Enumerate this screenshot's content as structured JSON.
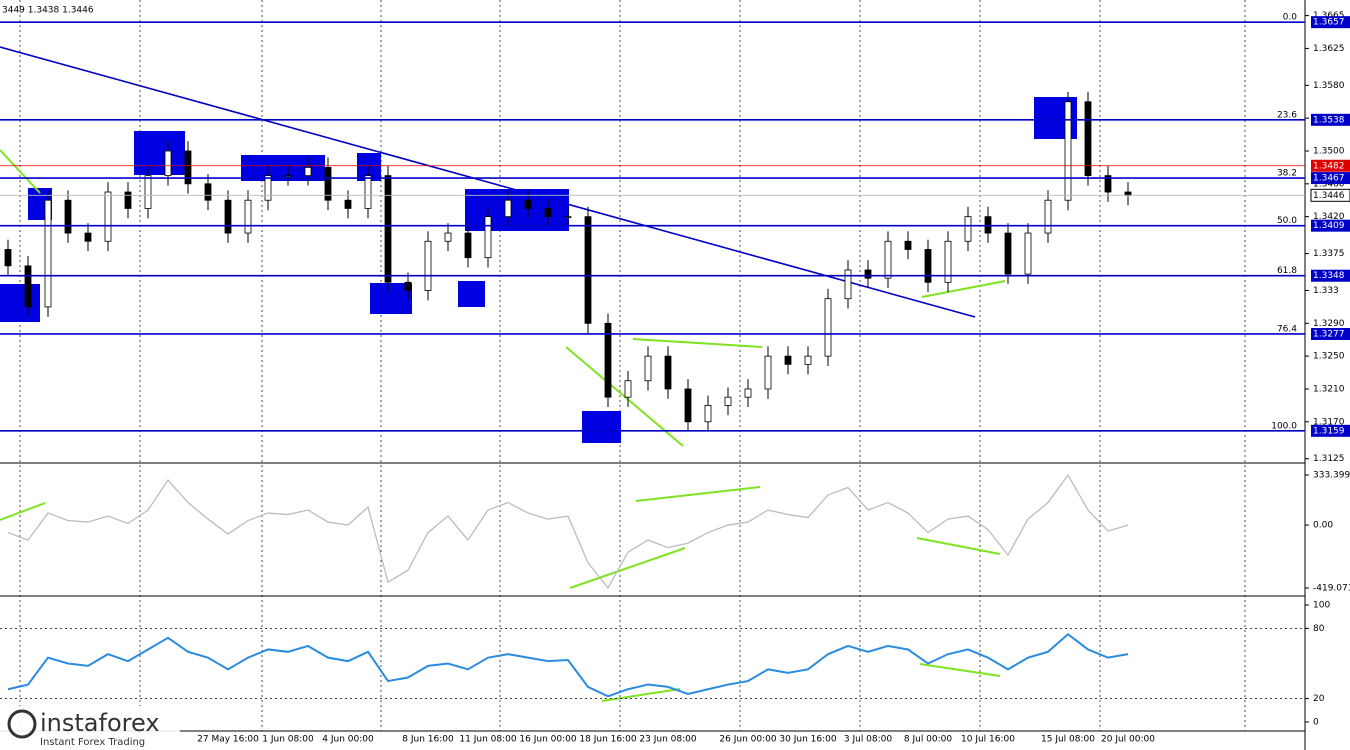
{
  "header_text": "3449 1.3438 1.3446",
  "watermark": {
    "brand": "instaforex",
    "tagline": "Instant Forex Trading"
  },
  "chart_data": [
    {
      "type": "candlestick",
      "categories": [
        null,
        null,
        null,
        null,
        null,
        null,
        null,
        null,
        null,
        null,
        null,
        "27 May 16:00",
        null,
        null,
        "1 Jun 08:00",
        null,
        null,
        "4 Jun 00:00",
        null,
        null,
        null,
        "8 Jun 16:00",
        null,
        null,
        "11 Jun 08:00",
        null,
        null,
        "16 Jun 00:00",
        null,
        null,
        "18 Jun 16:00",
        null,
        null,
        "23 Jun 08:00",
        null,
        null,
        null,
        "26 Jun 00:00",
        null,
        null,
        "30 Jun 16:00",
        null,
        null,
        "3 Jul 08:00",
        null,
        null,
        "8 Jul 00:00",
        null,
        null,
        "10 Jul 16:00",
        null,
        null,
        null,
        "15 Jul 08:00",
        null,
        null,
        "20 Jul 00:00"
      ],
      "open": [
        1.338,
        1.336,
        1.331,
        1.344,
        1.34,
        1.339,
        1.345,
        1.343,
        1.347,
        1.35,
        1.346,
        1.344,
        1.34,
        1.344,
        1.347,
        1.347,
        1.348,
        1.344,
        1.343,
        1.347,
        1.334,
        1.333,
        1.339,
        1.34,
        1.337,
        1.342,
        1.344,
        1.343,
        1.342,
        1.342,
        1.329,
        1.32,
        1.322,
        1.325,
        1.321,
        1.317,
        1.319,
        1.32,
        1.321,
        1.325,
        1.324,
        1.325,
        1.332,
        1.3355,
        1.3345,
        1.339,
        1.338,
        1.334,
        1.339,
        1.342,
        1.34,
        1.335,
        1.34,
        1.344,
        1.356,
        1.347,
        1.345
      ],
      "high": [
        1.3392,
        1.3372,
        1.3452,
        1.3452,
        1.3412,
        1.3462,
        1.3462,
        1.3482,
        1.3512,
        1.3512,
        1.3472,
        1.3452,
        1.3452,
        1.3482,
        1.3482,
        1.3492,
        1.3492,
        1.3452,
        1.3482,
        1.3482,
        1.3352,
        1.3402,
        1.3412,
        1.3412,
        1.3432,
        1.3452,
        1.3452,
        1.3442,
        1.3432,
        1.3432,
        1.3302,
        1.3232,
        1.3262,
        1.3262,
        1.3222,
        1.3202,
        1.3212,
        1.3222,
        1.3262,
        1.3262,
        1.3262,
        1.3332,
        1.3367,
        1.3367,
        1.3402,
        1.3402,
        1.3392,
        1.3402,
        1.3432,
        1.3432,
        1.3412,
        1.3412,
        1.3452,
        1.3572,
        1.3572,
        1.3482,
        1.3462
      ],
      "low": [
        1.3348,
        1.3298,
        1.3298,
        1.3388,
        1.3378,
        1.3378,
        1.3418,
        1.3418,
        1.3458,
        1.3448,
        1.3428,
        1.3388,
        1.3388,
        1.3428,
        1.3458,
        1.3458,
        1.3428,
        1.3418,
        1.3418,
        1.3328,
        1.3318,
        1.3318,
        1.3378,
        1.3358,
        1.3358,
        1.3408,
        1.3418,
        1.3408,
        1.3408,
        1.3278,
        1.3188,
        1.3188,
        1.3208,
        1.3198,
        1.3158,
        1.3158,
        1.3178,
        1.3188,
        1.3198,
        1.3228,
        1.3228,
        1.3238,
        1.3308,
        1.3333,
        1.3333,
        1.3368,
        1.3328,
        1.3328,
        1.3378,
        1.3388,
        1.3338,
        1.3338,
        1.3388,
        1.3428,
        1.3458,
        1.3438,
        1.3434
      ],
      "close": [
        1.336,
        1.331,
        1.344,
        1.34,
        1.339,
        1.345,
        1.343,
        1.347,
        1.35,
        1.346,
        1.344,
        1.34,
        1.344,
        1.347,
        1.347,
        1.348,
        1.344,
        1.343,
        1.347,
        1.334,
        1.333,
        1.339,
        1.34,
        1.337,
        1.342,
        1.344,
        1.343,
        1.342,
        1.342,
        1.329,
        1.32,
        1.322,
        1.325,
        1.321,
        1.317,
        1.319,
        1.32,
        1.321,
        1.325,
        1.324,
        1.325,
        1.332,
        1.3355,
        1.3345,
        1.339,
        1.338,
        1.334,
        1.339,
        1.342,
        1.34,
        1.335,
        1.34,
        1.344,
        1.356,
        1.347,
        1.345,
        1.3446
      ],
      "ylim": [
        1.3121,
        1.3684
      ],
      "yticks": [
        1.3665,
        1.3625,
        {
          "value": 1.358,
          "label": "1.3580"
        },
        {
          "value": 1.354,
          "label": "1.3540"
        },
        {
          "value": 1.35,
          "label": "1.3500"
        },
        {
          "value": 1.346,
          "label": "1.3460"
        },
        {
          "value": 1.342,
          "label": "1.3420"
        },
        1.3375,
        1.333,
        {
          "value": 1.329,
          "label": "1.3290"
        },
        {
          "value": 1.325,
          "label": "1.3250"
        },
        {
          "value": 1.321,
          "label": "1.3210"
        },
        {
          "value": 1.317,
          "label": "1.3170"
        },
        1.3125
      ],
      "levels": [
        {
          "label": "0.0",
          "value": 1.3657
        },
        {
          "label": "23.6",
          "value": 1.3538
        },
        {
          "label": "38.2",
          "value": 1.3467
        },
        {
          "label": "50.0",
          "value": 1.3409
        },
        {
          "label": "61.8",
          "value": 1.3348
        },
        {
          "label": "76.4",
          "value": 1.3277
        },
        {
          "label": "100.0",
          "value": 1.3159
        }
      ],
      "level_color": "#0000c8",
      "resistance": {
        "value": 1.3482,
        "color": "#e00000"
      },
      "bid": 1.3446
    },
    {
      "type": "line",
      "color": "#bcbcbc",
      "values": [
        -50,
        -100,
        80,
        30,
        20,
        60,
        10,
        100,
        300,
        150,
        40,
        -60,
        30,
        80,
        70,
        100,
        20,
        0,
        120,
        -380,
        -300,
        -50,
        60,
        -100,
        100,
        150,
        80,
        40,
        60,
        -250,
        -419,
        -180,
        -100,
        -150,
        -120,
        -50,
        0,
        20,
        100,
        70,
        50,
        200,
        250,
        100,
        150,
        80,
        -50,
        40,
        60,
        -30,
        -200,
        40,
        150,
        333,
        100,
        -40,
        0
      ],
      "ylim": [
        -419.071,
        333.3997
      ],
      "yticks": [
        333.3997,
        {
          "value": 0,
          "label": "0.00"
        },
        -419.071
      ]
    },
    {
      "type": "line",
      "color": "#2b8be0",
      "values": [
        28,
        32,
        55,
        50,
        48,
        58,
        52,
        62,
        72,
        60,
        55,
        45,
        55,
        62,
        60,
        65,
        55,
        52,
        60,
        35,
        38,
        48,
        50,
        45,
        55,
        58,
        55,
        52,
        53,
        30,
        22,
        28,
        32,
        30,
        24,
        28,
        32,
        35,
        45,
        42,
        45,
        58,
        65,
        60,
        65,
        62,
        50,
        58,
        62,
        55,
        45,
        55,
        60,
        75,
        62,
        55,
        58
      ],
      "ylim": [
        0,
        100
      ],
      "yticks": [
        100,
        80,
        20,
        0
      ]
    }
  ]
}
